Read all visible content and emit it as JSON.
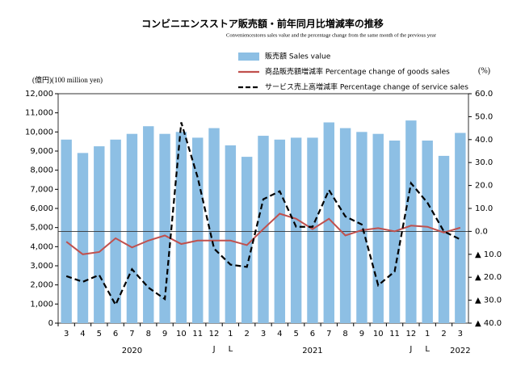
{
  "chart_data": {
    "type": "bar-line",
    "title": "コンビニエンスストア販売額・前年同月比増減率の推移",
    "subtitle": "Conveniencestores sales value and the percentage change from the same month of the previous year",
    "y_unit": "(億円)(100 million yen)",
    "y2_unit": "(%)",
    "categories": [
      "3",
      "4",
      "5",
      "6",
      "7",
      "8",
      "9",
      "10",
      "11",
      "12",
      "1",
      "2",
      "3",
      "4",
      "5",
      "6",
      "7",
      "8",
      "9",
      "10",
      "11",
      "12",
      "1",
      "2",
      "3"
    ],
    "sub_labels": [
      null,
      null,
      null,
      null,
      null,
      null,
      null,
      null,
      null,
      "J",
      "L",
      null,
      null,
      null,
      null,
      null,
      null,
      null,
      null,
      null,
      null,
      "J",
      "L",
      null,
      null
    ],
    "years": [
      null,
      null,
      null,
      null,
      "2020",
      null,
      null,
      null,
      null,
      null,
      null,
      null,
      null,
      null,
      null,
      "2021",
      null,
      null,
      null,
      null,
      null,
      null,
      null,
      null,
      "2022"
    ],
    "series": [
      {
        "name": "販売額 Sales value",
        "type": "bar",
        "color": "#8dbfe4",
        "values": [
          9600,
          8900,
          9250,
          9600,
          9900,
          10300,
          9900,
          10000,
          9700,
          10200,
          9300,
          8700,
          9800,
          9600,
          9700,
          9700,
          10500,
          10200,
          10000,
          9900,
          9550,
          10600,
          9550,
          8750,
          9950
        ]
      },
      {
        "name": "商品販売額増減率 Percentage change of goods sales",
        "type": "line",
        "axis": "y2",
        "color": "#c0504d",
        "dash": false,
        "values": [
          -4.5,
          -10,
          -9,
          -3,
          -7,
          -4,
          -1.8,
          -5.5,
          -4,
          -4,
          -4,
          -6,
          1,
          7.7,
          5.5,
          1,
          5.5,
          -1.8,
          0.5,
          1.4,
          0,
          2.5,
          2,
          -0.5,
          1.6
        ]
      },
      {
        "name": "サービス売上高増減率 Percentage change of service sales",
        "type": "line",
        "axis": "y2",
        "color": "#000000",
        "dash": true,
        "values": [
          -19.5,
          -22,
          -19,
          -32,
          -16.5,
          -24.5,
          -29.5,
          47.5,
          23.5,
          -7.5,
          -14.5,
          -15.5,
          14,
          17.5,
          2,
          2,
          18,
          6.5,
          3,
          -23.5,
          -17.5,
          21,
          12.5,
          0,
          -3.5
        ]
      }
    ],
    "ylim": [
      0,
      12000
    ],
    "yticks": [
      0,
      {
        "value": 1000,
        "label": "1,000"
      },
      {
        "value": 2000,
        "label": "2,000"
      },
      {
        "value": 3000,
        "label": "3,000"
      },
      {
        "value": 4000,
        "label": "4,000"
      },
      {
        "value": 5000,
        "label": "5,000"
      },
      {
        "value": 6000,
        "label": "6,000"
      },
      {
        "value": 7000,
        "label": "7,000"
      },
      {
        "value": 8000,
        "label": "8,000"
      },
      {
        "value": 9000,
        "label": "9,000"
      },
      {
        "value": 10000,
        "label": "10,000"
      },
      {
        "value": 11000,
        "label": "11,000"
      },
      {
        "value": 12000,
        "label": "12,000"
      }
    ],
    "y2lim": [
      -40,
      60
    ],
    "y2ticks": [
      {
        "value": -40,
        "label": "▲ 40.0"
      },
      {
        "value": -30,
        "label": "▲ 30.0"
      },
      {
        "value": -20,
        "label": "▲ 20.0"
      },
      {
        "value": -10,
        "label": "▲ 10.0"
      },
      {
        "value": 0,
        "label": "0.0"
      },
      {
        "value": 10,
        "label": "10.0"
      },
      {
        "value": 20,
        "label": "20.0"
      },
      {
        "value": 30,
        "label": "30.0"
      },
      {
        "value": 40,
        "label": "40.0"
      },
      {
        "value": 50,
        "label": "50.0"
      },
      {
        "value": 60,
        "label": "60.0"
      }
    ],
    "y2_zero_line": true
  }
}
